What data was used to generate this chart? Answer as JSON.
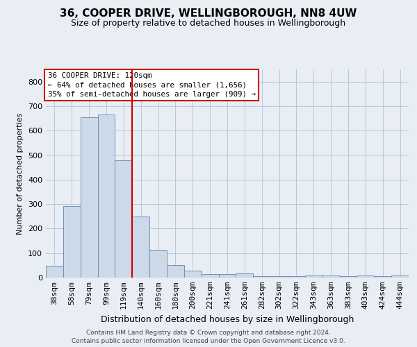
{
  "title": "36, COOPER DRIVE, WELLINGBOROUGH, NN8 4UW",
  "subtitle": "Size of property relative to detached houses in Wellingborough",
  "xlabel": "Distribution of detached houses by size in Wellingborough",
  "ylabel": "Number of detached properties",
  "footer_line1": "Contains HM Land Registry data © Crown copyright and database right 2024.",
  "footer_line2": "Contains public sector information licensed under the Open Government Licence v3.0.",
  "categories": [
    "38sqm",
    "58sqm",
    "79sqm",
    "99sqm",
    "119sqm",
    "140sqm",
    "160sqm",
    "180sqm",
    "200sqm",
    "221sqm",
    "241sqm",
    "261sqm",
    "282sqm",
    "302sqm",
    "322sqm",
    "343sqm",
    "363sqm",
    "383sqm",
    "403sqm",
    "424sqm",
    "444sqm"
  ],
  "values": [
    48,
    292,
    655,
    665,
    478,
    250,
    113,
    52,
    28,
    15,
    15,
    18,
    5,
    5,
    5,
    8,
    8,
    5,
    8,
    5,
    8
  ],
  "bar_color": "#ccd9e8",
  "bar_edge_color": "#7090b8",
  "annotation_line1": "36 COOPER DRIVE: 120sqm",
  "annotation_line2": "← 64% of detached houses are smaller (1,656)",
  "annotation_line3": "35% of semi-detached houses are larger (909) →",
  "annotation_box_color": "#ffffff",
  "annotation_box_edge_color": "#cc0000",
  "property_line_color": "#cc0000",
  "property_line_x": 4.5,
  "ylim": [
    0,
    850
  ],
  "yticks": [
    0,
    100,
    200,
    300,
    400,
    500,
    600,
    700,
    800
  ],
  "background_color": "#e8eef4",
  "plot_background_color": "#e8eef4",
  "grid_color": "#b8c8d8",
  "title_fontsize": 11,
  "subtitle_fontsize": 9
}
